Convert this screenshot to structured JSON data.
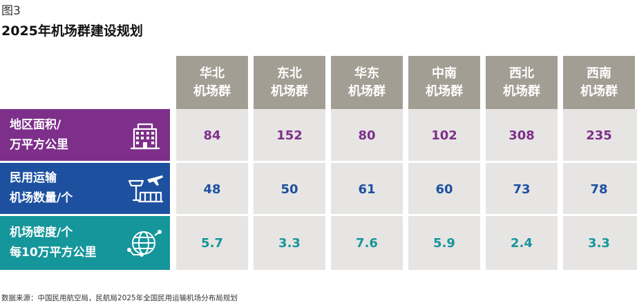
{
  "figure_label": "图3",
  "title": "2025年机场群建设规划",
  "source": "数据来源：中国民用航空局，民航局2025年全国民用运输机场分布局规划",
  "colors": {
    "header": "#a39e94",
    "row1": "#7d2f8a",
    "row2": "#1d51a0",
    "row3": "#15969b",
    "value1": "#7d2f8a",
    "value2": "#1d51a0",
    "value3": "#15969b",
    "cell_bg": "#e7e5e3"
  },
  "chart_data": {
    "type": "table",
    "columns": [
      {
        "line1": "华北",
        "line2": "机场群"
      },
      {
        "line1": "东北",
        "line2": "机场群"
      },
      {
        "line1": "华东",
        "line2": "机场群"
      },
      {
        "line1": "中南",
        "line2": "机场群"
      },
      {
        "line1": "西北",
        "line2": "机场群"
      },
      {
        "line1": "西南",
        "line2": "机场群"
      }
    ],
    "rows": [
      {
        "line1": "地区面积/",
        "line2": "万平方公里",
        "icon": "building-icon",
        "values": [
          "84",
          "152",
          "80",
          "102",
          "308",
          "235"
        ]
      },
      {
        "line1": "民用运输",
        "line2": "机场数量/个",
        "icon": "airport-tower-icon",
        "values": [
          "48",
          "50",
          "61",
          "60",
          "73",
          "78"
        ]
      },
      {
        "line1": "机场密度/个",
        "line2": "每10万平方公里",
        "icon": "globe-network-icon",
        "values": [
          "5.7",
          "3.3",
          "7.6",
          "5.9",
          "2.4",
          "3.3"
        ]
      }
    ]
  }
}
